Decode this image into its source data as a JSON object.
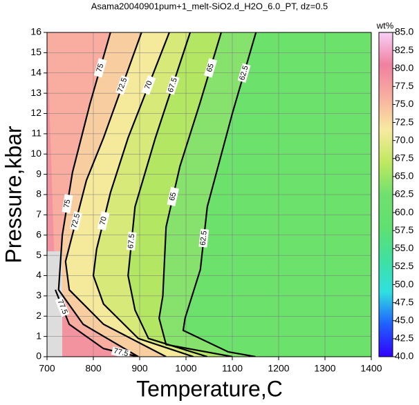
{
  "chart_data": {
    "type": "contour",
    "title": "Asama20040901pum+1_melt-SiO2.d_H2O_6.0_PT, dz=0.5",
    "x_label": "Temperature,C",
    "y_label": "Pressure,kbar",
    "colorbar_label": "wt%",
    "xlim": [
      700,
      1400
    ],
    "xticks": [
      700,
      800,
      900,
      1000,
      1100,
      1200,
      1300,
      1400
    ],
    "ylim": [
      0,
      16
    ],
    "yticks": [
      0,
      1,
      2,
      3,
      4,
      5,
      6,
      7,
      8,
      9,
      10,
      11,
      12,
      13,
      14,
      15,
      16
    ],
    "zlim": [
      40,
      85
    ],
    "zticks": [
      {
        "value": 40,
        "label": "40.0"
      },
      {
        "value": 42.5,
        "label": "42.5"
      },
      {
        "value": 45,
        "label": "45.0"
      },
      {
        "value": 47.5,
        "label": "47.5"
      },
      {
        "value": 50,
        "label": "50.0"
      },
      {
        "value": 52.5,
        "label": "52.5"
      },
      {
        "value": 55,
        "label": "55.0"
      },
      {
        "value": 57.5,
        "label": "57.5"
      },
      {
        "value": 60,
        "label": "60.0"
      },
      {
        "value": 62.5,
        "label": "62.5"
      },
      {
        "value": 65,
        "label": "65.0"
      },
      {
        "value": 67.5,
        "label": "67.5"
      },
      {
        "value": 70,
        "label": "70.0"
      },
      {
        "value": 72.5,
        "label": "72.5"
      },
      {
        "value": 75,
        "label": "75.0"
      },
      {
        "value": 77.5,
        "label": "77.5"
      },
      {
        "value": 80,
        "label": "80.0"
      },
      {
        "value": 82.5,
        "label": "82.5"
      },
      {
        "value": 85,
        "label": "85.0"
      }
    ],
    "colormap": [
      "#3000ff",
      "#2060ff",
      "#30e0e0",
      "#40e0a0",
      "#60e070",
      "#70e070",
      "#c0e860",
      "#f8eaa0",
      "#f8b0a0",
      "#f080a0",
      "#f8d0f8"
    ],
    "background_color": "#6ce26c",
    "grid": true,
    "contours": [
      {
        "level": 62.5,
        "T": [
          1151,
          1100,
          1046,
          1031,
          998,
          994,
          1091,
          1150
        ],
        "P": [
          16,
          12,
          7.4,
          4.3,
          1.9,
          1.3,
          0.24,
          0
        ]
      },
      {
        "level": 65,
        "T": [
          1076,
          1030,
          987,
          957,
          950,
          942,
          957,
          1100
        ],
        "P": [
          16,
          12.5,
          9.4,
          6.4,
          3,
          1.9,
          0.6,
          0
        ]
      },
      {
        "level": 67.5,
        "T": [
          1009,
          934,
          890,
          875,
          890,
          919,
          1046
        ],
        "P": [
          16,
          10.8,
          7.4,
          4,
          2.3,
          0.9,
          0
        ]
      },
      {
        "level": 70,
        "T": [
          964,
          875,
          837,
          807,
          800,
          822,
          897,
          1016
        ],
        "P": [
          16,
          10.8,
          8.1,
          5.3,
          4,
          2.6,
          0.9,
          0
        ]
      },
      {
        "level": 72.5,
        "T": [
          904,
          822,
          785,
          740,
          748,
          822,
          957
        ],
        "P": [
          16,
          10.8,
          8.7,
          4.7,
          3.3,
          1.6,
          0
        ]
      },
      {
        "level": 75,
        "T": [
          837,
          793,
          755,
          733,
          725,
          778,
          897
        ],
        "P": [
          16,
          12.5,
          9.1,
          6,
          3.3,
          1.6,
          0
        ]
      },
      {
        "level": 77.5,
        "T": [
          718,
          748,
          822,
          897
        ],
        "P": [
          3.3,
          1.6,
          0.4,
          0
        ]
      }
    ]
  }
}
